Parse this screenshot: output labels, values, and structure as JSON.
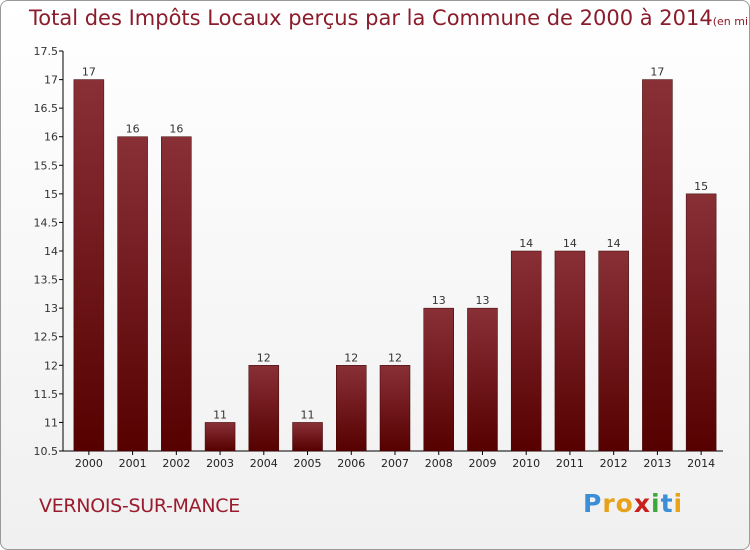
{
  "chart_data": {
    "type": "bar",
    "title": "Total des Impôts Locaux perçus par la Commune de 2000 à 2014",
    "unit_label": "(en milliers d'€)",
    "categories": [
      "2000",
      "2001",
      "2002",
      "2003",
      "2004",
      "2005",
      "2006",
      "2007",
      "2008",
      "2009",
      "2010",
      "2011",
      "2012",
      "2013",
      "2014"
    ],
    "values": [
      17,
      16,
      16,
      11,
      12,
      11,
      12,
      12,
      13,
      13,
      14,
      14,
      14,
      17,
      15
    ],
    "data_labels": [
      "17",
      "16",
      "16",
      "11",
      "12",
      "11",
      "12",
      "12",
      "13",
      "13",
      "14",
      "14",
      "14",
      "17",
      "15"
    ],
    "yticks": [
      10.5,
      11,
      11.5,
      12,
      12.5,
      13,
      13.5,
      14,
      14.5,
      15,
      15.5,
      16,
      16.5,
      17,
      17.5
    ],
    "ytick_labels": [
      "10.5",
      "11",
      "11.5",
      "12",
      "12.5",
      "13",
      "13.5",
      "14",
      "14.5",
      "15",
      "15.5",
      "16",
      "16.5",
      "17",
      "17.5"
    ],
    "ylim": [
      10.5,
      17.5
    ],
    "xlabel": "",
    "ylabel": "",
    "grid": false,
    "bar_color": "#7a1a24"
  },
  "commune": "VERNOIS-SUR-MANCE",
  "logo": {
    "letters": [
      "P",
      "r",
      "o",
      "x",
      "i",
      "t",
      "i"
    ],
    "colors": [
      "#3a8fd6",
      "#e8a21a",
      "#e8a21a",
      "#c8201a",
      "#3aa83a",
      "#3a8fd6",
      "#e8a21a"
    ]
  }
}
